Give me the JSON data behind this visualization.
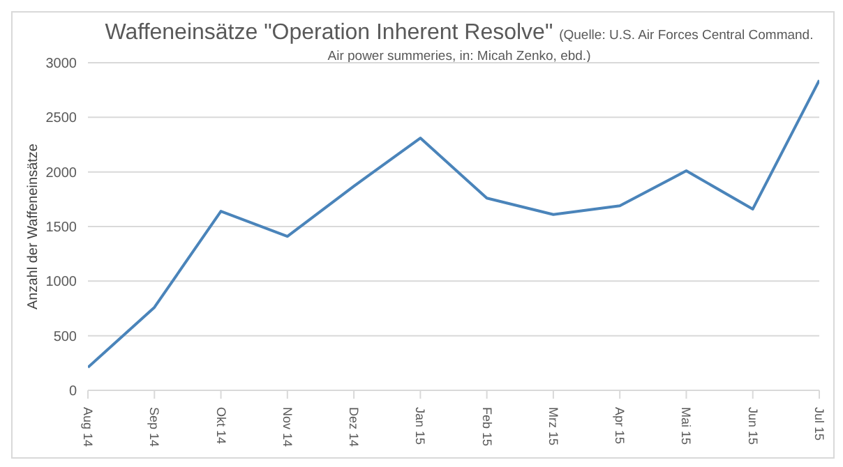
{
  "chart_data": {
    "type": "line",
    "title": "Waffeneinsätze \"Operation Inherent Resolve\"",
    "annotations": [
      "(Quelle: U.S. Air Forces Central Command. Air power summeries, in: Micah Zenko, ebd.)"
    ],
    "ylabel": "Anzahl der Waffeneinsätze",
    "categories": [
      "Aug 14",
      "Sep 14",
      "Okt 14",
      "Nov 14",
      "Dez 14",
      "Jan 15",
      "Feb 15",
      "Mrz 15",
      "Apr 15",
      "Mai 15",
      "Jun 15",
      "Jul 15"
    ],
    "series": [
      {
        "color": "#4a84ba",
        "values": [
          210,
          760,
          1640,
          1410,
          1870,
          2310,
          1760,
          1610,
          1690,
          2010,
          1660,
          2840
        ]
      }
    ],
    "ylim": [
      0,
      3000
    ],
    "yticks": [
      0,
      500,
      1000,
      1500,
      2000,
      2500,
      3000
    ],
    "grid": "y",
    "marker": "none",
    "line_style": "solid"
  }
}
